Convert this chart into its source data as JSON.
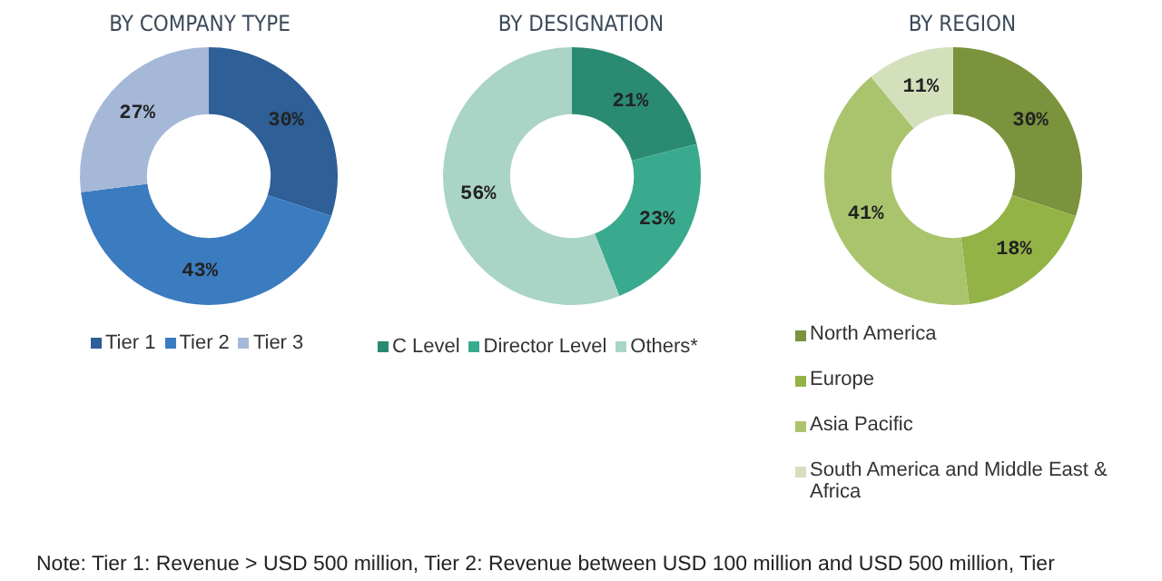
{
  "chart_data": [
    {
      "type": "donut",
      "title": "BY COMPANY TYPE",
      "categories": [
        "Tier 1",
        "Tier 2",
        "Tier 3"
      ],
      "values": [
        30,
        43,
        27
      ],
      "value_labels": [
        "30%",
        "43%",
        "27%"
      ],
      "colors": [
        "#2e5f96",
        "#3b7bbf",
        "#a5b8d8"
      ],
      "legend": "bottom",
      "annotations": [
        "Note: Tier 1: Revenue > USD 500 million, Tier 2: Revenue between USD 100 million and USD 500 million, Tier"
      ]
    },
    {
      "type": "donut",
      "title": "BY DESIGNATION",
      "categories": [
        "C Level",
        "Director Level",
        "Others*"
      ],
      "values": [
        21,
        23,
        56
      ],
      "value_labels": [
        "21%",
        "23%",
        "56%"
      ],
      "colors": [
        "#2a8a72",
        "#3aaa8e",
        "#a9d4c6"
      ],
      "legend": "bottom"
    },
    {
      "type": "donut",
      "title": "BY REGION",
      "categories": [
        "North America",
        "Europe",
        "Asia Pacific",
        "South America and Middle East & Africa"
      ],
      "values": [
        30,
        18,
        41,
        11
      ],
      "value_labels": [
        "30%",
        "18%",
        "41%",
        "11%"
      ],
      "colors": [
        "#7a933c",
        "#93b347",
        "#aac46e",
        "#d4e0bc"
      ],
      "legend": "bottom"
    }
  ]
}
